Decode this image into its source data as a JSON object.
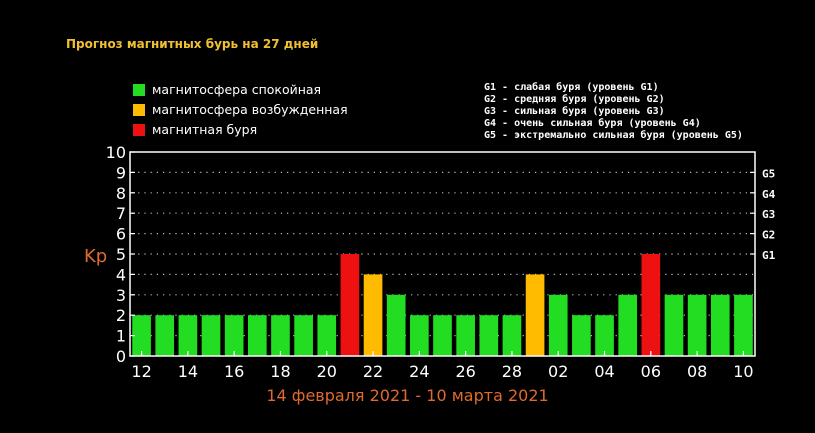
{
  "header": {
    "title": "Прогноз магнитных бурь на 27 дней"
  },
  "legend": {
    "items": [
      {
        "label": "магнитосфера спокойная",
        "color": "#22dd22"
      },
      {
        "label": "магнитосфера возбужденная",
        "color": "#ffbb00"
      },
      {
        "label": "магнитная буря",
        "color": "#ee1111"
      }
    ]
  },
  "g_legend": {
    "lines": [
      "G1 - слабая буря (уровень G1)",
      "G2 - средняя буря (уровень G2)",
      "G3 - сильная буря (уровень G3)",
      "G4 - очень сильная буря (уровень G4)",
      "G5 - экстремально сильная буря (уровень G5)"
    ]
  },
  "period_label": "14 февраля 2021 - 10 марта 2021",
  "colors": {
    "background": "#000000",
    "title": "#f0c030",
    "axis": "#ffffff",
    "ylabel": "#e06a2c",
    "period": "#e06a2c",
    "calm": "#22dd22",
    "excited": "#ffbb00",
    "storm": "#ee1111"
  },
  "chart_data": {
    "type": "bar",
    "ylabel": "Kp",
    "ylim": [
      0,
      10
    ],
    "y_ticks": [
      "0",
      "1",
      "2",
      "3",
      "4",
      "5",
      "6",
      "7",
      "8",
      "9",
      "10"
    ],
    "grid": "dotted",
    "right_axis_labels": [
      {
        "value": 5,
        "label": "G1"
      },
      {
        "value": 6,
        "label": "G2"
      },
      {
        "value": 7,
        "label": "G3"
      },
      {
        "value": 8,
        "label": "G4"
      },
      {
        "value": 9,
        "label": "G5"
      }
    ],
    "x_tick_labels": [
      "12",
      "14",
      "16",
      "18",
      "20",
      "22",
      "24",
      "26",
      "28",
      "02",
      "04",
      "06",
      "08",
      "10"
    ],
    "values": [
      2,
      2,
      2,
      2,
      2,
      2,
      2,
      2,
      2,
      5,
      4,
      3,
      2,
      2,
      2,
      2,
      2,
      4,
      3,
      2,
      2,
      3,
      5,
      3,
      3,
      3,
      3
    ],
    "levels": [
      "calm",
      "calm",
      "calm",
      "calm",
      "calm",
      "calm",
      "calm",
      "calm",
      "calm",
      "storm",
      "excited",
      "calm",
      "calm",
      "calm",
      "calm",
      "calm",
      "calm",
      "excited",
      "calm",
      "calm",
      "calm",
      "calm",
      "storm",
      "calm",
      "calm",
      "calm",
      "calm"
    ]
  }
}
